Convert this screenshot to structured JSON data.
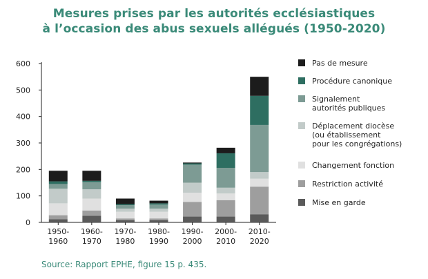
{
  "chart_data": {
    "type": "bar",
    "stacked": true,
    "title_line1": "Mesures prises par les autorités ecclésiastiques",
    "title_line2": "à l’occasion des abus sexuels allégués (1950-2020)",
    "xlabel": "",
    "ylabel": "",
    "ylim": [
      0,
      600
    ],
    "yticks": [
      "0",
      "100",
      "200",
      "300",
      "400",
      "500",
      "600"
    ],
    "categories": [
      [
        "1950-",
        "1960"
      ],
      [
        "1960-",
        "1970"
      ],
      [
        "1970-",
        "1980"
      ],
      [
        "1980-",
        "1990"
      ],
      [
        "1990-",
        "2000"
      ],
      [
        "2000-",
        "2010"
      ],
      [
        "2010-",
        "2020"
      ]
    ],
    "series": [
      {
        "name": "Mise en garde",
        "lines": [
          "Mise en garde"
        ],
        "color": "#5a5a5a",
        "values": [
          12,
          25,
          8,
          8,
          22,
          22,
          30
        ]
      },
      {
        "name": "Restriction activité",
        "lines": [
          "Restriction activité"
        ],
        "color": "#9e9e9e",
        "values": [
          15,
          20,
          7,
          7,
          55,
          62,
          105
        ]
      },
      {
        "name": "Changement fonction",
        "lines": [
          "Changement fonction"
        ],
        "color": "#e0e0e0",
        "values": [
          45,
          45,
          25,
          25,
          35,
          25,
          30
        ]
      },
      {
        "name": "Déplacement diocèse (ou établissement pour les congrégations)",
        "lines": [
          "Déplacement diocèse",
          "(ou établissement",
          "pour les congrégations)"
        ],
        "color": "#c2cbc9",
        "values": [
          55,
          35,
          12,
          12,
          38,
          22,
          25
        ]
      },
      {
        "name": "Signalement autorités publiques",
        "lines": [
          "Signalement",
          "autorités publiques"
        ],
        "color": "#7d9b94",
        "values": [
          18,
          27,
          13,
          15,
          68,
          75,
          178
        ]
      },
      {
        "name": "Procédure canonique",
        "lines": [
          "Procédure canonique"
        ],
        "color": "#2e6e61",
        "values": [
          10,
          5,
          4,
          5,
          5,
          55,
          110
        ]
      },
      {
        "name": "Pas de mesure",
        "lines": [
          "Pas de mesure"
        ],
        "color": "#1c1c1c",
        "values": [
          40,
          38,
          21,
          10,
          3,
          21,
          72
        ]
      }
    ],
    "legend_order": [
      "Pas de mesure",
      "Procédure canonique",
      "Signalement autorités publiques",
      "Déplacement diocèse (ou établissement pour les congrégations)",
      "Changement fonction",
      "Restriction activité",
      "Mise en garde"
    ],
    "legend_position": "right"
  },
  "source": "Source: Rapport EPHE, figure 15 p. 435."
}
